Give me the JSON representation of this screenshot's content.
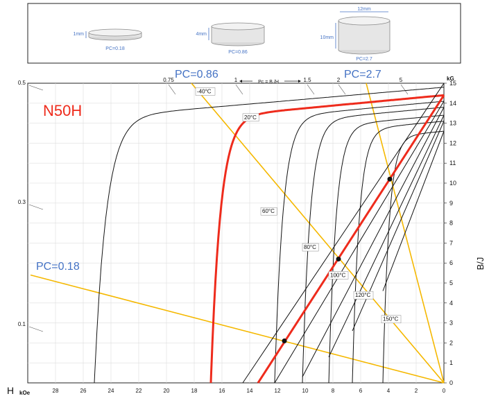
{
  "header_panel": {
    "samples": [
      {
        "dim_label": "1mm",
        "pc_label": "PC=0.18"
      },
      {
        "dim_label": "4mm",
        "pc_label": "PC=0.86"
      },
      {
        "dim_label": "10mm",
        "pc_label": "PC=2.7",
        "width_label": "12mm"
      }
    ]
  },
  "chart_data": {
    "type": "line",
    "title": "N50H",
    "xlabel": "H",
    "x_unit": "kOe",
    "ylabel": "B/J",
    "y_unit": "kG",
    "xlim": [
      0,
      30
    ],
    "ylim": [
      0,
      15
    ],
    "x_reversed": true,
    "x_ticks": [
      "28",
      "26",
      "24",
      "22",
      "20",
      "18",
      "16",
      "14",
      "12",
      "10",
      "8",
      "6",
      "4",
      "2",
      "0"
    ],
    "y_ticks": [
      "0",
      "1",
      "2",
      "3",
      "4",
      "5",
      "6",
      "7",
      "8",
      "9",
      "10",
      "11",
      "12",
      "13",
      "14",
      "15"
    ],
    "pc_scale": {
      "label": "Pc = B /H",
      "top_ticks": [
        "0.75",
        "1",
        "1.5",
        "2",
        "5"
      ],
      "left_ticks": [
        "0.5",
        "0.3",
        "0.1"
      ]
    },
    "colors": {
      "curve": "#111111",
      "highlight": "#ee2b1c",
      "loadline": "#f5b800",
      "pc_text": "#4472c4",
      "grid": "#dddddd"
    },
    "temperature_labels": [
      "-40°C",
      "20°C",
      "60°C",
      "80°C",
      "100°C",
      "120°C",
      "150°C"
    ],
    "load_lines": [
      {
        "name": "PC=0.18",
        "from": [
          0,
          0
        ],
        "to": [
          29.8,
          5.4
        ]
      },
      {
        "name": "PC=0.86",
        "from": [
          0,
          0
        ],
        "to": [
          18.2,
          15.0
        ]
      },
      {
        "name": "PC=2.7",
        "from": [
          0,
          0
        ],
        "to": [
          5.6,
          15.0
        ]
      }
    ],
    "operating_points": [
      {
        "x": 11.5,
        "y": 2.1
      },
      {
        "x": 7.6,
        "y": 6.2
      },
      {
        "x": 3.9,
        "y": 10.2
      }
    ],
    "series": [
      {
        "temperature": "-40°C",
        "kind": "demag",
        "br": 14.8,
        "hcj": 25.2,
        "knee": 1.6,
        "slope": 0.06
      },
      {
        "temperature": "20°C",
        "kind": "demag",
        "br": 14.4,
        "hcj": 16.8,
        "knee": 1.0,
        "slope": 0.065
      },
      {
        "temperature": "60°C",
        "kind": "demag",
        "br": 14.1,
        "hcj": 12.2,
        "knee": 1.0,
        "slope": 0.065
      },
      {
        "temperature": "80°C",
        "kind": "demag",
        "br": 13.8,
        "hcj": 10.2,
        "knee": 0.9,
        "slope": 0.065
      },
      {
        "temperature": "100°C",
        "kind": "demag",
        "br": 13.4,
        "hcj": 8.3,
        "knee": 0.9,
        "slope": 0.065
      },
      {
        "temperature": "120°C",
        "kind": "demag",
        "br": 13.1,
        "hcj": 6.6,
        "knee": 0.9,
        "slope": 0.065
      },
      {
        "temperature": "150°C",
        "kind": "demag",
        "br": 12.6,
        "hcj": 4.4,
        "knee": 0.8,
        "slope": 0.065
      },
      {
        "temperature": "-40°C",
        "kind": "normal",
        "points": [
          [
            0,
            15.0
          ],
          [
            14.5,
            0
          ]
        ]
      },
      {
        "temperature": "20°C",
        "kind": "normal",
        "highlight": true,
        "points": [
          [
            0,
            14.4
          ],
          [
            13.4,
            0
          ]
        ]
      },
      {
        "temperature": "60°C",
        "kind": "normal",
        "points": [
          [
            0,
            14.1
          ],
          [
            12.2,
            0
          ]
        ]
      },
      {
        "temperature": "80°C",
        "kind": "normal",
        "points": [
          [
            0,
            13.8
          ],
          [
            10.2,
            0.3
          ]
        ]
      },
      {
        "temperature": "100°C",
        "kind": "normal",
        "points": [
          [
            0,
            13.4
          ],
          [
            8.3,
            1.3
          ]
        ]
      },
      {
        "temperature": "120°C",
        "kind": "normal",
        "points": [
          [
            0,
            13.1
          ],
          [
            6.6,
            2.6
          ]
        ]
      },
      {
        "temperature": "150°C",
        "kind": "normal",
        "points": [
          [
            0,
            12.6
          ],
          [
            4.4,
            4.6
          ]
        ]
      }
    ]
  }
}
